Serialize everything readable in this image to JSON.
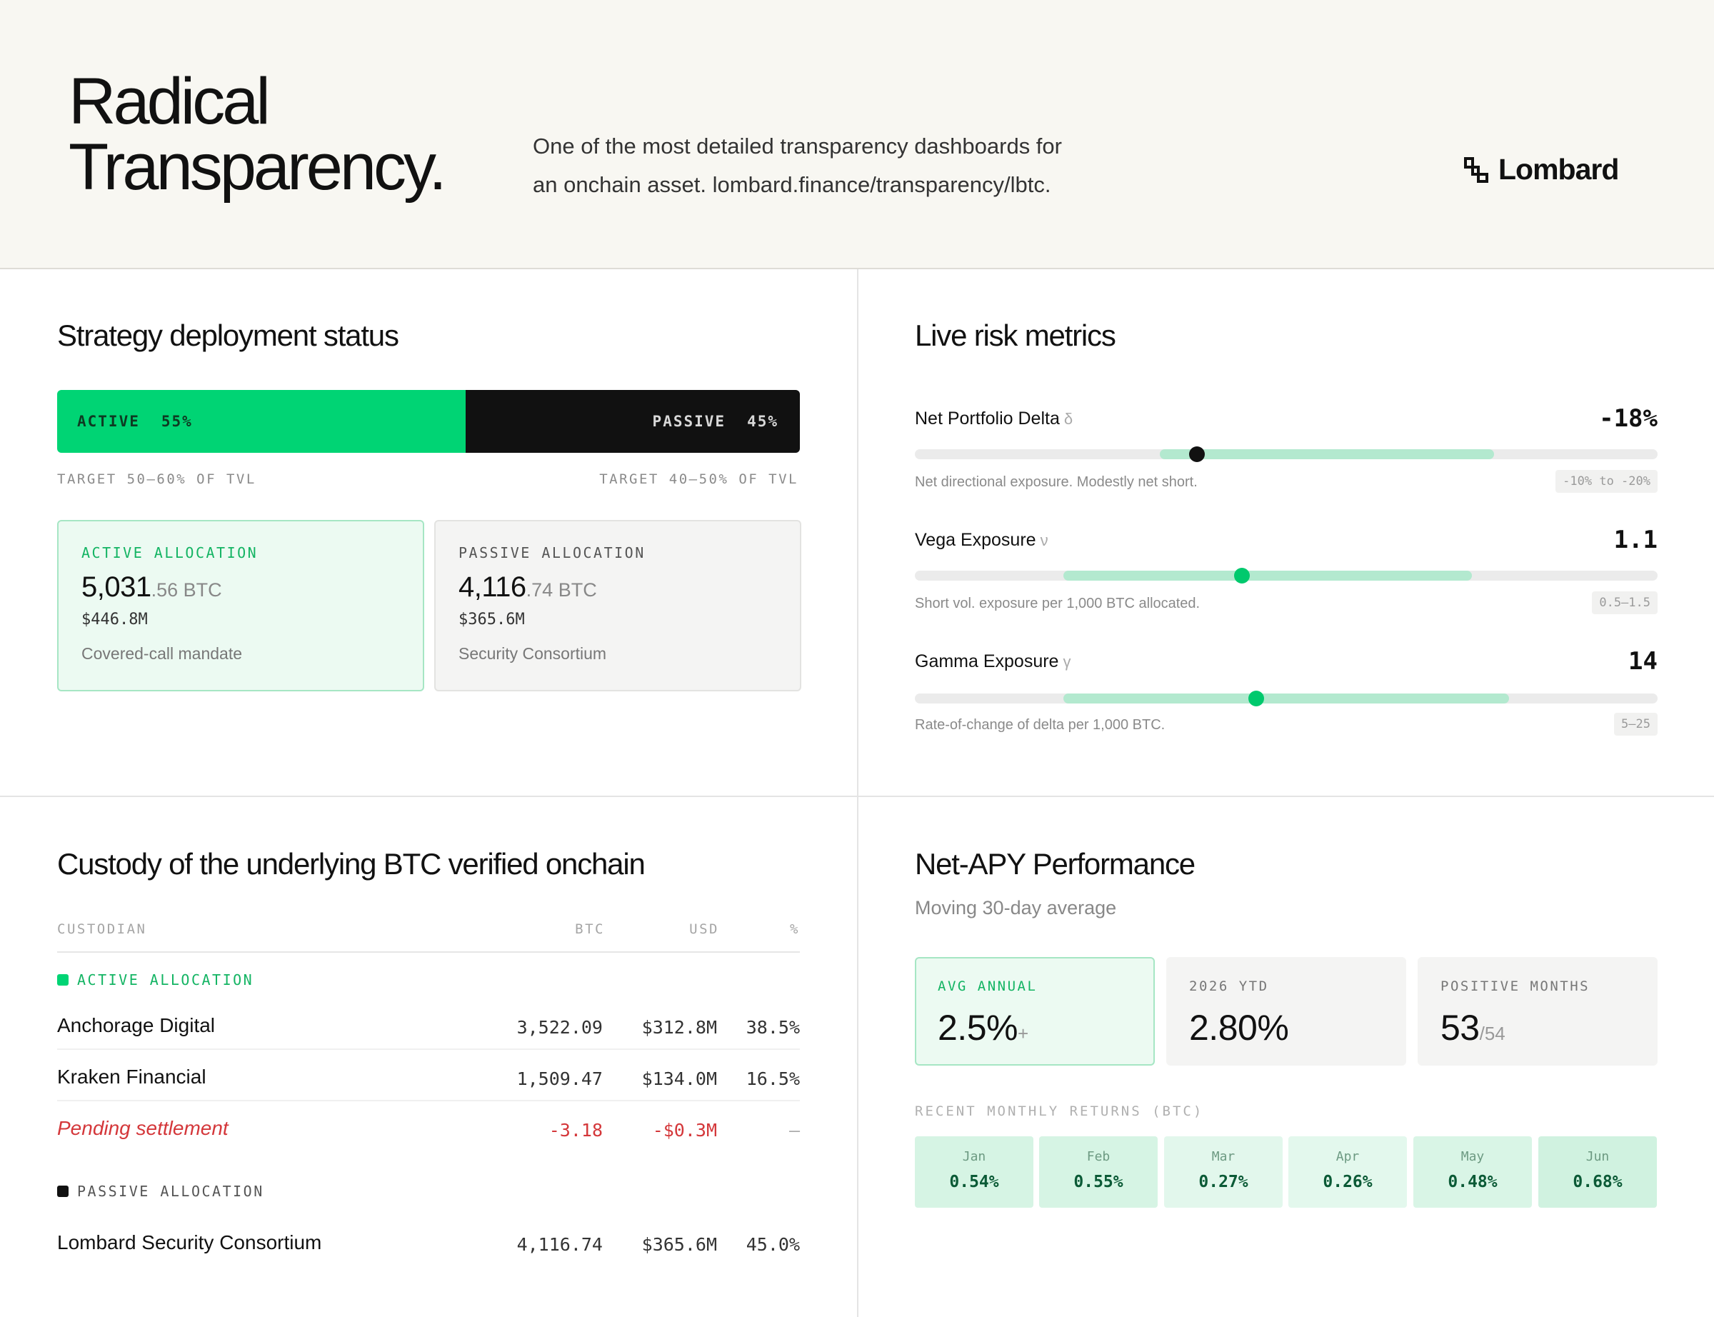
{
  "header": {
    "title_line1": "Radical",
    "title_line2": "Transparency.",
    "description_line1": "One of the most detailed transparency dashboards for",
    "description_line2": "an onchain asset. lombard.finance/transparency/lbtc.",
    "logo_text": "Lombard",
    "logo_icon": "lombard-logo-icon"
  },
  "deployment": {
    "title": "Strategy deployment status",
    "active_label": "ACTIVE",
    "active_pct": "55%",
    "active_share": 0.55,
    "passive_label": "PASSIVE",
    "passive_pct": "45%",
    "active_target": "TARGET 50–60% OF TVL",
    "passive_target": "TARGET 40–50% OF TVL",
    "active_card": {
      "label": "ACTIVE ALLOCATION",
      "btc_int": "5,031",
      "btc_dec": ".56",
      "btc_unit": "BTC",
      "usd": "$446.8M",
      "note": "Covered-call mandate"
    },
    "passive_card": {
      "label": "PASSIVE ALLOCATION",
      "btc_int": "4,116",
      "btc_dec": ".74",
      "btc_unit": "BTC",
      "usd": "$365.6M",
      "note": "Security Consortium"
    }
  },
  "risk": {
    "title": "Live risk metrics",
    "metrics": [
      {
        "name": "Net Portfolio Delta",
        "symbol": "δ",
        "value": "-18%",
        "description": "Net directional exposure. Modestly net short.",
        "range": "-10% to -20%",
        "range_start": 0.33,
        "range_end": 0.78,
        "marker": 0.38,
        "marker_color": "#111111"
      },
      {
        "name": "Vega Exposure",
        "symbol": "ν",
        "value": "1.1",
        "description": "Short vol. exposure per 1,000 BTC allocated.",
        "range": "0.5–1.5",
        "range_start": 0.2,
        "range_end": 0.75,
        "marker": 0.44,
        "marker_color": "#00c96d"
      },
      {
        "name": "Gamma Exposure",
        "symbol": "γ",
        "value": "14",
        "description": "Rate-of-change of delta per 1,000 BTC.",
        "range": "5–25",
        "range_start": 0.2,
        "range_end": 0.8,
        "marker": 0.46,
        "marker_color": "#00c96d"
      }
    ]
  },
  "custody": {
    "title": "Custody of the underlying BTC verified onchain",
    "columns": [
      "CUSTODIAN",
      "BTC",
      "USD",
      "%"
    ],
    "active_group_label": "ACTIVE ALLOCATION",
    "passive_group_label": "PASSIVE ALLOCATION",
    "active_rows": [
      {
        "name": "Anchorage Digital",
        "btc": "3,522.09",
        "usd": "$312.8M",
        "pct": "38.5%"
      },
      {
        "name": "Kraken Financial",
        "btc": "1,509.47",
        "usd": "$134.0M",
        "pct": "16.5%"
      },
      {
        "name": "Pending settlement",
        "btc": "-3.18",
        "usd": "-$0.3M",
        "pct": "—"
      }
    ],
    "passive_rows": [
      {
        "name": "Lombard Security Consortium",
        "btc": "4,116.74",
        "usd": "$365.6M",
        "pct": "45.0%"
      }
    ]
  },
  "apy": {
    "title": "Net-APY Performance",
    "subtitle": "Moving 30-day average",
    "stats": [
      {
        "label": "AVG ANNUAL",
        "value": "2.5%",
        "suffix": "+"
      },
      {
        "label": "2026 YTD",
        "value": "2.80%",
        "suffix": ""
      },
      {
        "label": "POSITIVE MONTHS",
        "value": "53",
        "suffix": "/54"
      }
    ],
    "returns_label": "RECENT MONTHLY RETURNS (BTC)",
    "months": [
      {
        "name": "Jan",
        "value": "0.54%",
        "level": 0.54
      },
      {
        "name": "Feb",
        "value": "0.55%",
        "level": 0.55
      },
      {
        "name": "Mar",
        "value": "0.27%",
        "level": 0.27
      },
      {
        "name": "Apr",
        "value": "0.26%",
        "level": 0.26
      },
      {
        "name": "May",
        "value": "0.48%",
        "level": 0.48
      },
      {
        "name": "Jun",
        "value": "0.68%",
        "level": 0.68
      }
    ]
  }
}
